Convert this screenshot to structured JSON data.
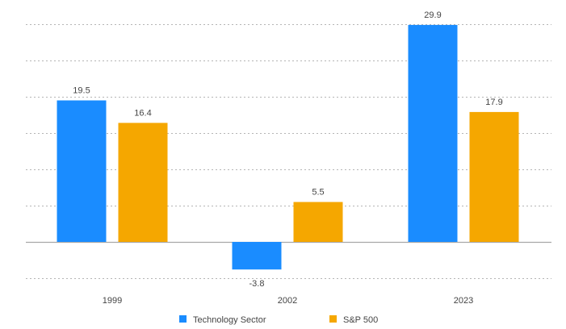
{
  "chart_data": {
    "type": "bar",
    "categories": [
      "1999",
      "2002",
      "2023"
    ],
    "series": [
      {
        "name": "Technology Sector",
        "values": [
          19.5,
          -3.8,
          29.9
        ],
        "color": "#1a8cff"
      },
      {
        "name": "S&P 500",
        "values": [
          16.4,
          5.5,
          17.9
        ],
        "color": "#f5a700"
      }
    ],
    "title": "",
    "xlabel": "",
    "ylabel": "",
    "ylim": [
      -5,
      30
    ],
    "grid": true,
    "legend_position": "bottom-center"
  }
}
